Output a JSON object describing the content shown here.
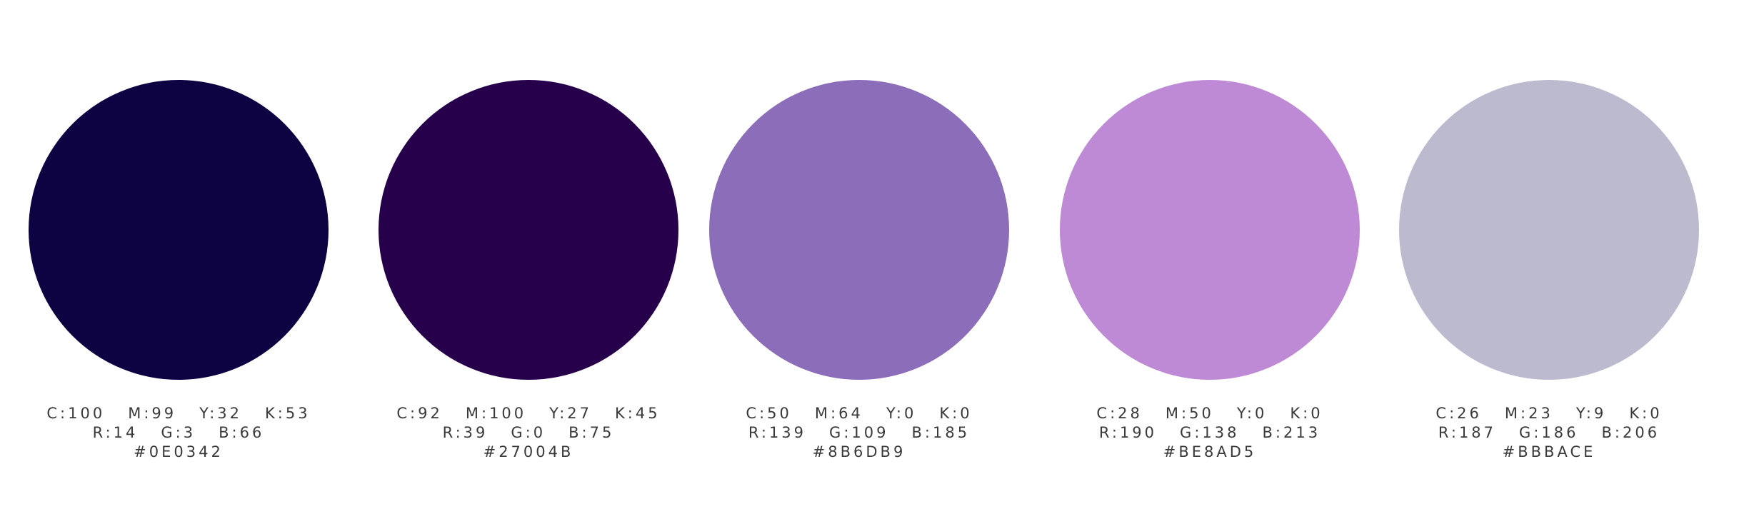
{
  "swatches": [
    {
      "color": "#0E0342",
      "cmyk": "C:100   M:99   Y:32   K:53",
      "rgb": "R:14   G:3   B:66",
      "hex": "#0E0342"
    },
    {
      "color": "#27004B",
      "cmyk": "C:92   M:100   Y:27   K:45",
      "rgb": "R:39   G:0   B:75",
      "hex": "#27004B"
    },
    {
      "color": "#8B6DB9",
      "cmyk": "C:50   M:64   Y:0   K:0",
      "rgb": "R:139   G:109   B:185",
      "hex": "#8B6DB9"
    },
    {
      "color": "#BE8AD5",
      "cmyk": "C:28   M:50   Y:0   K:0",
      "rgb": "R:190   G:138   B:213",
      "hex": "#BE8AD5"
    },
    {
      "color": "#BBBACE",
      "cmyk": "C:26   M:23   Y:9   K:0",
      "rgb": "R:187   G:186   B:206",
      "hex": "#BBBACE"
    }
  ]
}
